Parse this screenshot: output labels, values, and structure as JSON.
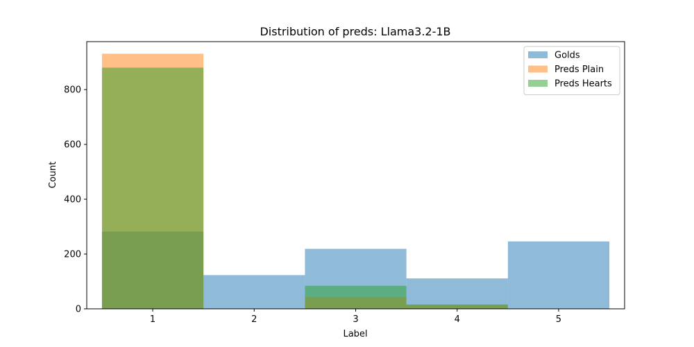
{
  "chart_data": {
    "type": "bar",
    "title": "Distribution of preds: Llama3.2-1B",
    "xlabel": "Label",
    "ylabel": "Count",
    "categories": [
      "1",
      "2",
      "3",
      "4",
      "5"
    ],
    "ylim": [
      0,
      975
    ],
    "yticks": [
      0,
      200,
      400,
      600,
      800
    ],
    "grid": false,
    "legend_position": "top-right",
    "bar_opacity": 0.5,
    "series": [
      {
        "name": "Golds",
        "color": "#1f77b4",
        "values": [
          282,
          123,
          219,
          111,
          246
        ]
      },
      {
        "name": "Preds Plain",
        "color": "#ff7f0e",
        "values": [
          931,
          0,
          42,
          14,
          0
        ]
      },
      {
        "name": "Preds Hearts",
        "color": "#2ca02c",
        "values": [
          880,
          0,
          84,
          16,
          0
        ]
      }
    ]
  }
}
